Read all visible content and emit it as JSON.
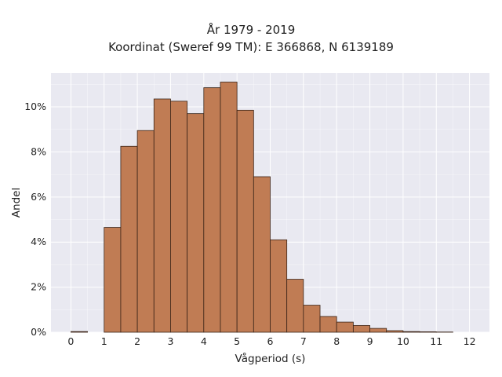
{
  "chart_data": {
    "type": "bar",
    "title": "År 1979 - 2019",
    "subtitle": "Koordinat (Sweref 99 TM): E 366868, N 6139189",
    "xlabel": "Vågperiod (s)",
    "ylabel": "Andel",
    "bin_width": 0.5,
    "bins": [
      {
        "start": 0.0,
        "value": 0.03
      },
      {
        "start": 0.5,
        "value": 0.0
      },
      {
        "start": 1.0,
        "value": 4.65
      },
      {
        "start": 1.5,
        "value": 8.25
      },
      {
        "start": 2.0,
        "value": 8.95
      },
      {
        "start": 2.5,
        "value": 10.35
      },
      {
        "start": 3.0,
        "value": 10.25
      },
      {
        "start": 3.5,
        "value": 9.7
      },
      {
        "start": 4.0,
        "value": 10.85
      },
      {
        "start": 4.5,
        "value": 11.1
      },
      {
        "start": 5.0,
        "value": 9.85
      },
      {
        "start": 5.5,
        "value": 6.9
      },
      {
        "start": 6.0,
        "value": 4.1
      },
      {
        "start": 6.5,
        "value": 2.35
      },
      {
        "start": 7.0,
        "value": 1.2
      },
      {
        "start": 7.5,
        "value": 0.7
      },
      {
        "start": 8.0,
        "value": 0.45
      },
      {
        "start": 8.5,
        "value": 0.3
      },
      {
        "start": 9.0,
        "value": 0.17
      },
      {
        "start": 9.5,
        "value": 0.07
      },
      {
        "start": 10.0,
        "value": 0.03
      },
      {
        "start": 10.5,
        "value": 0.02
      },
      {
        "start": 11.0,
        "value": 0.01
      }
    ],
    "xlim": [
      -0.6,
      12.6
    ],
    "ylim": [
      0,
      11.5
    ],
    "xticks": [
      0,
      1,
      2,
      3,
      4,
      5,
      6,
      7,
      8,
      9,
      10,
      11,
      12
    ],
    "yticks": [
      0,
      2,
      4,
      6,
      8,
      10
    ],
    "y_unit": "%",
    "grid": true,
    "colors": {
      "bar_fill": "#c07c54",
      "bar_edge": "#3a2418",
      "plot_bg": "#e9e9f1",
      "grid": "#ffffff"
    }
  }
}
